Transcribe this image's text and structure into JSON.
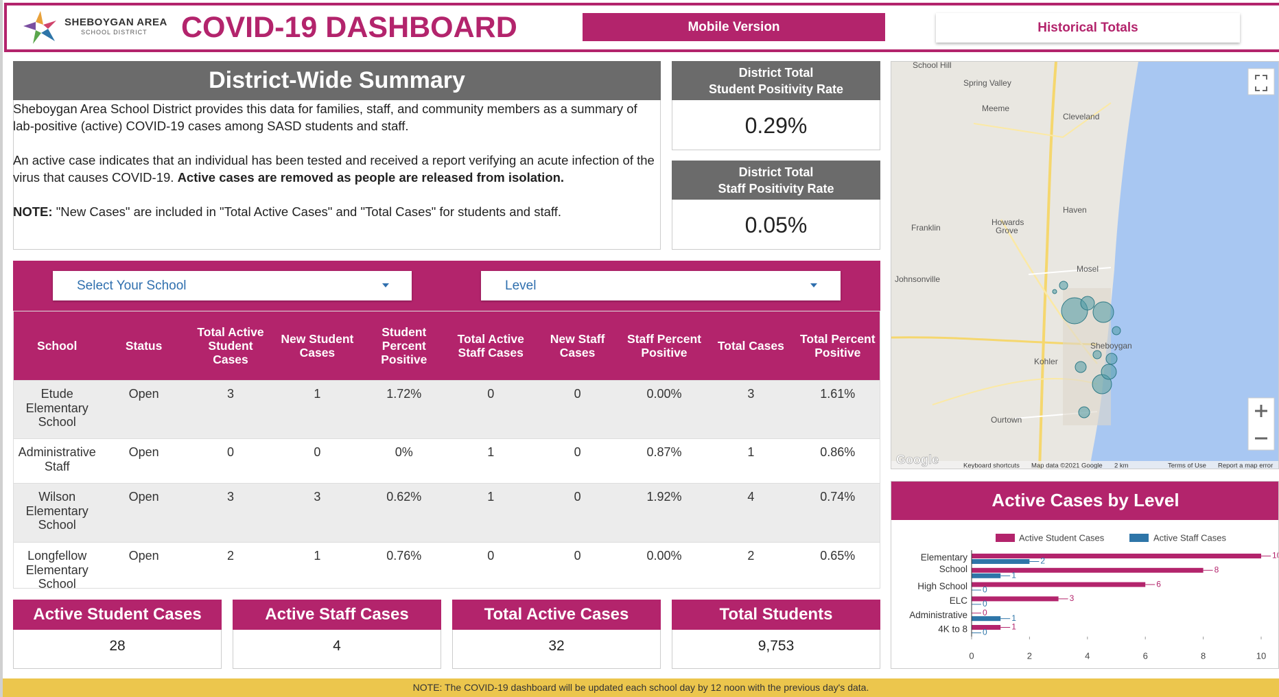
{
  "header": {
    "logo_name": "SHEBOYGAN AREA",
    "logo_sub": "SCHOOL DISTRICT",
    "title": "COVID-19 DASHBOARD",
    "buttons": [
      "Mobile Version",
      "Historical Totals"
    ]
  },
  "summary": {
    "title": "District-Wide Summary",
    "paragraph_1": "Sheboygan Area School District provides this data for families, staff, and community members as a summary of lab-positive (active) COVID-19 cases among SASD students and staff.",
    "paragraph_2": "An active case indicates that an individual has been tested and received a report verifying an acute infection of the virus that causes COVID-19. ",
    "paragraph_2_bold": "Active cases are removed as people are released from isolation.",
    "note_label": "NOTE:",
    "note_text": " \"New Cases\" are included in \"Total Active Cases\" and \"Total Cases\" for students and staff."
  },
  "kpis": [
    {
      "title_1": "District Total",
      "title_2": "Student Positivity Rate",
      "value": "0.29%"
    },
    {
      "title_1": "District Total",
      "title_2": "Staff Positivity Rate",
      "value": "0.05%"
    }
  ],
  "filters": [
    "Select Your School",
    "Level"
  ],
  "table": {
    "columns": [
      "School",
      "Status",
      "Total Active Student Cases",
      "New Student Cases",
      "Student Percent Positive",
      "Total Active Staff Cases",
      "New Staff Cases",
      "Staff Percent Positive",
      "Total Cases",
      "Total Percent Positive"
    ],
    "rows": [
      [
        "Etude Elementary School",
        "Open",
        "3",
        "1",
        "1.72%",
        "0",
        "0",
        "0.00%",
        "3",
        "1.61%"
      ],
      [
        "Administrative Staff",
        "Open",
        "0",
        "0",
        "0%",
        "1",
        "0",
        "0.87%",
        "1",
        "0.86%"
      ],
      [
        "Wilson Elementary School",
        "Open",
        "3",
        "3",
        "0.62%",
        "1",
        "0",
        "1.92%",
        "4",
        "0.74%"
      ],
      [
        "Longfellow Elementary School",
        "Open",
        "2",
        "1",
        "0.76%",
        "0",
        "0",
        "0.00%",
        "2",
        "0.65%"
      ]
    ]
  },
  "stats": [
    {
      "label": "Active Student Cases",
      "value": "28"
    },
    {
      "label": "Active Staff Cases",
      "value": "4"
    },
    {
      "label": "Total Active Cases",
      "value": "32"
    },
    {
      "label": "Total Students",
      "value": "9,753"
    }
  ],
  "map": {
    "places": [
      "School Hill",
      "Spring Valley",
      "Meeme",
      "Cleveland",
      "Haven",
      "Franklin",
      "Howards Grove",
      "Johnsonville",
      "Mosel",
      "Sheboygan",
      "Kohler",
      "Ourtown"
    ],
    "attribution": [
      "Google",
      "Keyboard shortcuts",
      "Map data ©2021 Google",
      "2 km",
      "Terms of Use",
      "Report a map error"
    ]
  },
  "chart_data": {
    "type": "bar",
    "orientation": "horizontal",
    "title": "Active Cases by Level",
    "categories": [
      "Elementary School",
      null,
      "High School",
      "ELC",
      "Administrative",
      "4K to 8"
    ],
    "series": [
      {
        "name": "Active Student Cases",
        "color": "#b3246c",
        "values": [
          10,
          8,
          6,
          3,
          0,
          1
        ]
      },
      {
        "name": "Active Staff Cases",
        "color": "#2e75a8",
        "values": [
          2,
          1,
          0,
          0,
          1,
          0
        ]
      }
    ],
    "xlim": [
      0,
      10
    ],
    "xticks": [
      0,
      2,
      4,
      6,
      8,
      10
    ],
    "legend": "top",
    "grid": false
  },
  "footer": "NOTE: The COVID-19 dashboard will be updated each school day by 12 noon with the previous day's data."
}
